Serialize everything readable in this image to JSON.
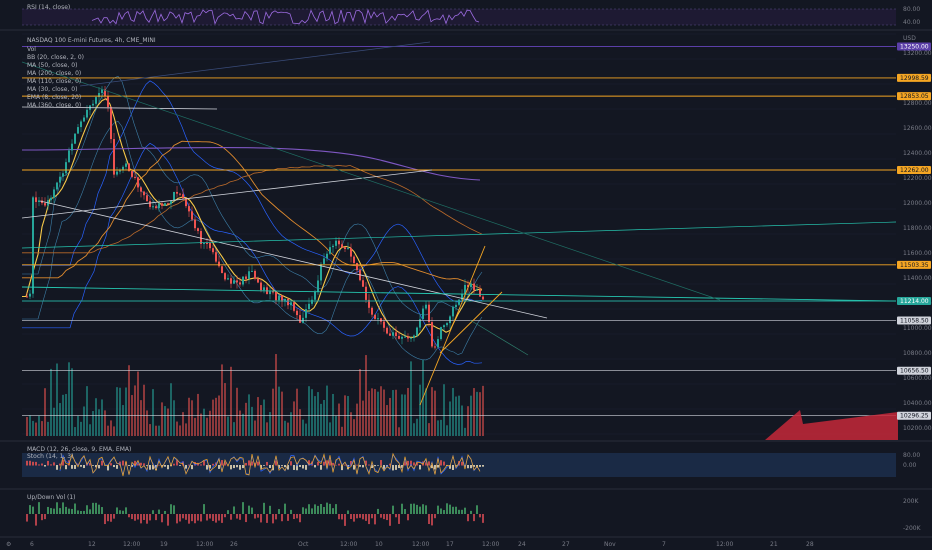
{
  "panes": {
    "rsi": {
      "title": "RSI (14, close)",
      "levels": [
        "80.00",
        "40.00"
      ]
    },
    "main": {
      "title": "NASDAQ 100 E-mini Futures, 4h, CME_MINI",
      "indicators": [
        "Vol",
        "BB (20, close, 2, 0)",
        "MA (50, close, 0)",
        "MA (200, close, 0)",
        "MA (110, close, 0)",
        "MA (30, close, 0)",
        "EMA (8, close, 20)",
        "MA (360, close, 0)"
      ],
      "currency": "USD",
      "price_axis": [
        "13200.00",
        "13000.00",
        "12800.00",
        "12600.00",
        "12400.00",
        "12200.00",
        "12000.00",
        "11800.00",
        "11600.00",
        "11400.00",
        "11200.00",
        "11000.00",
        "10800.00",
        "10600.00",
        "10400.00",
        "10200.00"
      ],
      "level_tags": [
        {
          "text": "13250.00",
          "price": 13250,
          "bg": "#5b3fa8",
          "fg": "#ffffff"
        },
        {
          "text": "12998.59",
          "price": 12998.59,
          "bg": "#f5a623",
          "fg": "#131722"
        },
        {
          "text": "12853.05",
          "price": 12853.05,
          "bg": "#f5a623",
          "fg": "#131722"
        },
        {
          "text": "12262.00",
          "price": 12262,
          "bg": "#f5a623",
          "fg": "#131722"
        },
        {
          "text": "11503.35",
          "price": 11503.35,
          "bg": "#f5a623",
          "fg": "#131722"
        },
        {
          "text": "11214.00",
          "price": 11214,
          "bg": "#26a69a",
          "fg": "#ffffff"
        },
        {
          "text": "11058.50",
          "price": 11058.5,
          "bg": "#d1d4dc",
          "fg": "#131722"
        },
        {
          "text": "10656.50",
          "price": 10656.5,
          "bg": "#d1d4dc",
          "fg": "#131722"
        },
        {
          "text": "10296.25",
          "price": 10296.25,
          "bg": "#d1d4dc",
          "fg": "#131722"
        }
      ]
    },
    "macd": {
      "title": "MACD (12, 26, close, 9, EMA, EMA)",
      "subtitle": "Stoch (14, 1, 3)",
      "levels": [
        "80.00",
        "0.00"
      ]
    },
    "updown": {
      "title": "Up/Down Vol (1)",
      "levels": [
        "200K",
        "-200K"
      ]
    }
  },
  "time_axis": [
    "6",
    "12",
    "12:00",
    "19",
    "12:00",
    "26",
    "Oct",
    "12:00",
    "10",
    "12:00",
    "17",
    "12:00",
    "24",
    "27",
    "Nov",
    "7",
    "12:00",
    "21",
    "28"
  ],
  "colors": {
    "up": "#26a69a",
    "down": "#ef5350",
    "orange": "#f5a623",
    "purple": "#7e57c2",
    "teal": "#26a69a",
    "blue": "#2962ff",
    "red_arrow": "#d0313a"
  }
}
